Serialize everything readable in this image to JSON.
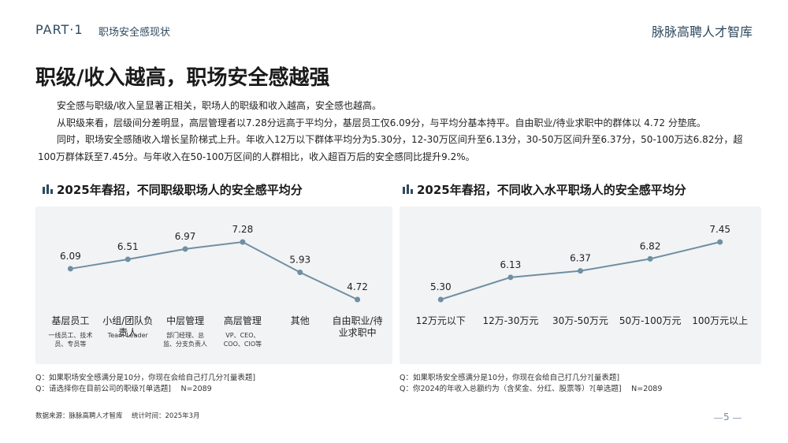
{
  "header": {
    "part": "PART·1",
    "section": "职场安全感现状",
    "brand": "脉脉高聘人才智库"
  },
  "title": "职级/收入越高，职场安全感越强",
  "paragraphs": [
    "安全感与职级/收入呈显著正相关，职场人的职级和收入越高，安全感也越高。",
    "从职级来看，层级间分差明显，高层管理者以7.28分远高于平均分，基层员工仅6.09分，与平均分基本持平。自由职业/待业求职中的群体以 4.72 分垫底。",
    "同时，职场安全感随收入增长呈阶梯式上升。年收入12万以下群体平均分为5.30分，12-30万区间升至6.13分，30-50万区间升至6.37分，50-100万达6.82分，超100万群体跃至7.45分。与年收入在50-100万区间的人群相比，收入超百万后的安全感同比提升9.2%。"
  ],
  "chart_data": [
    {
      "type": "line",
      "title": "2025年春招，不同职级职场人的安全感平均分",
      "categories": [
        "基层员工",
        "小组/团队负责人",
        "中层管理",
        "高层管理",
        "其他",
        "自由职业/待业求职中"
      ],
      "category_notes": [
        "一线员工、技术员、专员等",
        "Team Leader",
        "部门经理、总监、分支负责人",
        "VP、CEO、COO、CIO等",
        null,
        null
      ],
      "values": [
        6.09,
        6.51,
        6.97,
        7.28,
        5.93,
        4.72
      ],
      "value_labels": [
        "6.09",
        "6.51",
        "6.97",
        "7.28",
        "5.93",
        "4.72"
      ],
      "color": "#6f8fa2",
      "notes": [
        "Q：如果职场安全感满分是10分，你现在会给自己打几分?[量表题]",
        "Q：请选择你在目前公司的职级?[单选题]　 N=2089"
      ]
    },
    {
      "type": "line",
      "title": "2025年春招，不同收入水平职场人的安全感平均分",
      "categories": [
        "12万元以下",
        "12万-30万元",
        "30万-50万元",
        "50万-100万元",
        "100万元以上"
      ],
      "values": [
        5.3,
        6.13,
        6.37,
        6.82,
        7.45
      ],
      "value_labels": [
        "5.30",
        "6.13",
        "6.37",
        "6.82",
        "7.45"
      ],
      "color": "#6f8fa2",
      "notes": [
        "Q：如果职场安全感满分是10分，你现在会给自己打几分?[量表题]",
        "Q：你2024的年收入总额约为（含奖金、分红、股票等）?[单选题]　 N=2089"
      ]
    }
  ],
  "footer": {
    "source": "数据来源：脉脉高聘人才智库",
    "time": "统计时间：2025年3月",
    "page": "5"
  }
}
